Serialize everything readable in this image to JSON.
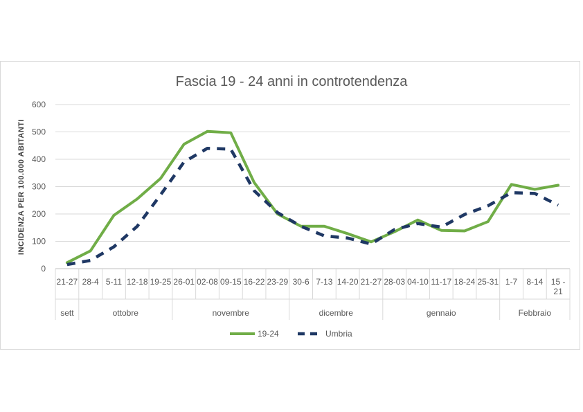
{
  "chart_data": {
    "type": "line",
    "title": "Fascia 19 - 24  anni in controtendenza",
    "ylabel": "INCIDENZA PER 100.000 ABITANTI",
    "xlabel": "",
    "ylim": [
      0,
      600
    ],
    "yticks": [
      0,
      100,
      200,
      300,
      400,
      500,
      600
    ],
    "grid": true,
    "legend_position": "bottom",
    "categories": [
      "21-27",
      "28-4",
      "5-11",
      "12-18",
      "19-25",
      "26-01",
      "02-08",
      "09-15",
      "16-22",
      "23-29",
      "30-6",
      "7-13",
      "14-20",
      "21-27",
      "28-03",
      "04-10",
      "11-17",
      "18-24",
      "25-31",
      "1-7",
      "8-14",
      "15 -\n21"
    ],
    "category_labels": [
      "21-27",
      "28-4",
      "5-11",
      "12-18",
      "19-25",
      "26-01",
      "02-08",
      "09-15",
      "16-22",
      "23-29",
      "30-6",
      "7-13",
      "14-20",
      "21-27",
      "28-03",
      "04-10",
      "11-17",
      "18-24",
      "25-31",
      "1-7",
      "8-14",
      "15 -",
      "21"
    ],
    "groups": [
      {
        "name": "sett",
        "start": 0,
        "end": 0
      },
      {
        "name": "ottobre",
        "start": 1,
        "end": 4
      },
      {
        "name": "novembre",
        "start": 5,
        "end": 9
      },
      {
        "name": "dicembre",
        "start": 10,
        "end": 13
      },
      {
        "name": "gennaio",
        "start": 14,
        "end": 18
      },
      {
        "name": "Febbraio",
        "start": 19,
        "end": 21
      }
    ],
    "series": [
      {
        "name": "19-24",
        "color": "#70ad47",
        "style": "solid",
        "values": [
          22,
          65,
          195,
          255,
          330,
          455,
          502,
          497,
          315,
          200,
          155,
          155,
          128,
          98,
          135,
          178,
          140,
          138,
          172,
          308,
          290,
          305
        ]
      },
      {
        "name": "Umbria",
        "color": "#1f3864",
        "style": "dashed",
        "values": [
          15,
          30,
          80,
          155,
          270,
          390,
          440,
          437,
          285,
          205,
          155,
          120,
          112,
          90,
          143,
          165,
          152,
          198,
          230,
          278,
          275,
          232
        ]
      }
    ]
  }
}
